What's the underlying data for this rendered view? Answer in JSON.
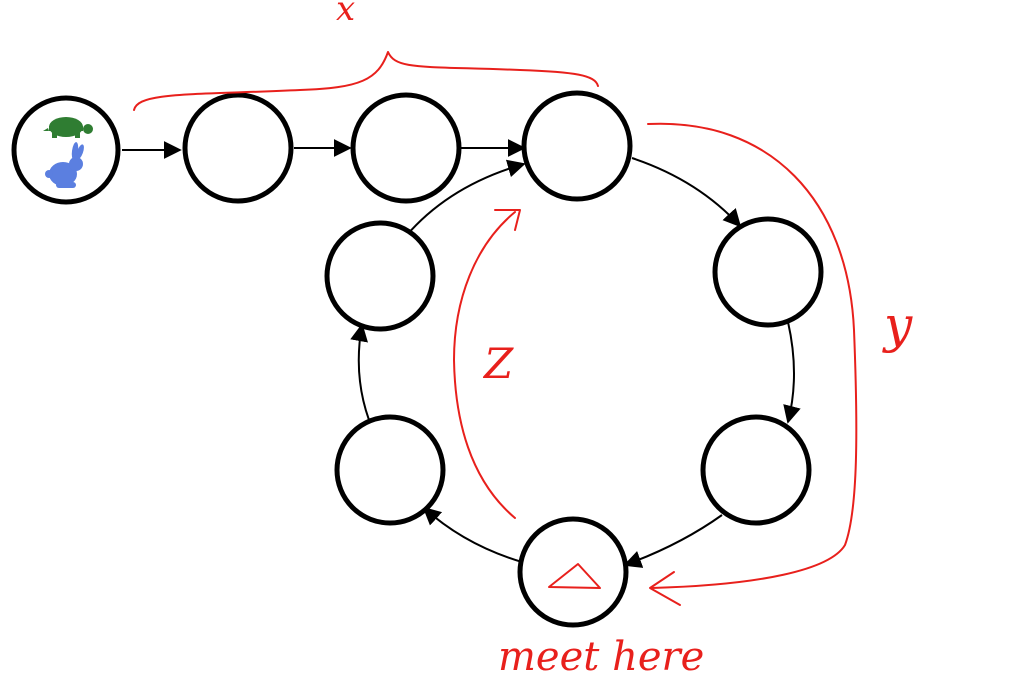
{
  "diagram": {
    "labels": {
      "x": "x",
      "y": "y",
      "z": "Z",
      "meet": "meet here"
    },
    "start_node_icons": [
      "tortoise-icon",
      "rabbit-icon"
    ],
    "meet_node_icon": "triangle-icon",
    "colors": {
      "annotation": "#e8201c",
      "tortoise": "#2f7d32",
      "rabbit": "#5b7fe0",
      "node_stroke": "#000000",
      "edge": "#000000"
    }
  }
}
